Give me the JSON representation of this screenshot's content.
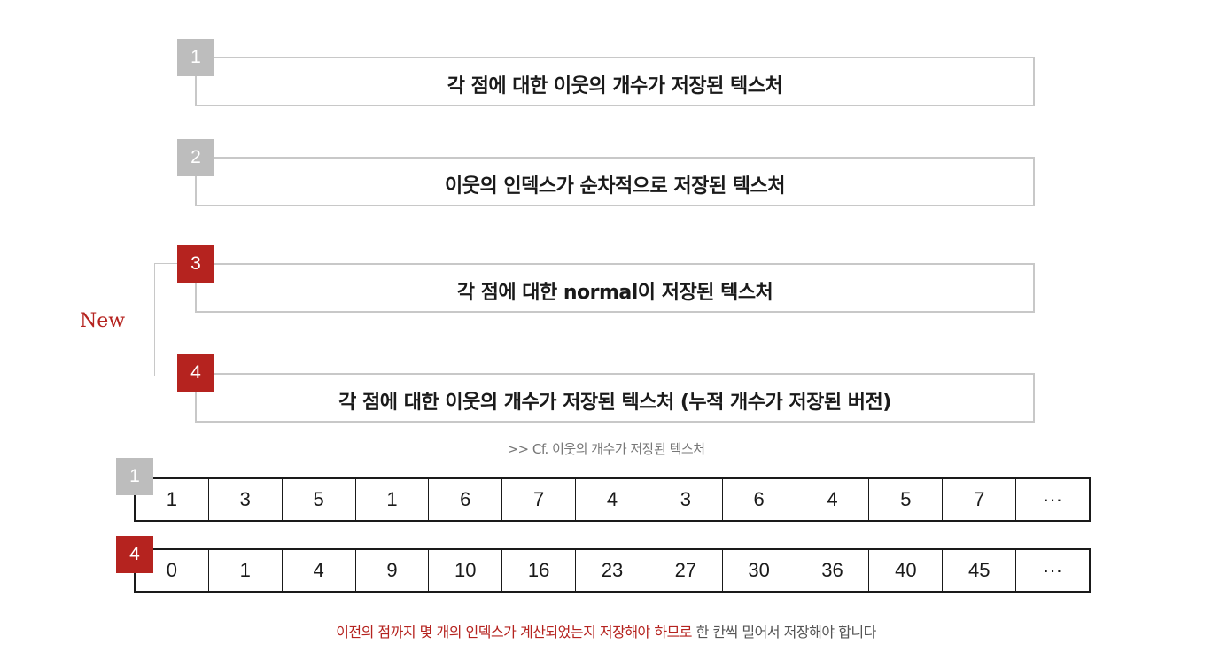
{
  "steps": [
    {
      "num": "1",
      "color": "gray",
      "label": "각 점에 대한 이웃의 개수가 저장된 텍스처"
    },
    {
      "num": "2",
      "color": "gray",
      "label": "이웃의 인덱스가 순차적으로 저장된 텍스처"
    },
    {
      "num": "3",
      "color": "red",
      "label": "각 점에 대한 normal이 저장된 텍스처"
    },
    {
      "num": "4",
      "color": "red",
      "label": "각 점에 대한 이웃의 개수가 저장된 텍스처 (누적 개수가 저장된 버전)"
    }
  ],
  "new_label": "New",
  "cf_caption": ">> Cf. 이웃의 개수가 저장된 텍스처",
  "arrays": [
    {
      "badge": "1",
      "color": "gray",
      "cells": [
        "1",
        "3",
        "5",
        "1",
        "6",
        "7",
        "4",
        "3",
        "6",
        "4",
        "5",
        "7",
        "···"
      ]
    },
    {
      "badge": "4",
      "color": "red",
      "cells": [
        "0",
        "1",
        "4",
        "9",
        "10",
        "16",
        "23",
        "27",
        "30",
        "36",
        "40",
        "45",
        "···"
      ]
    }
  ],
  "note": {
    "highlight": "이전의 점까지 몇 개의 인덱스가 계산되었는지 저장해야 하므로",
    "rest": " 한 칸씩 밀어서 저장해야 합니다"
  },
  "colors": {
    "accent": "#b5231f",
    "gray_badge": "#bdbdbd",
    "border": "#c8c8c8"
  }
}
